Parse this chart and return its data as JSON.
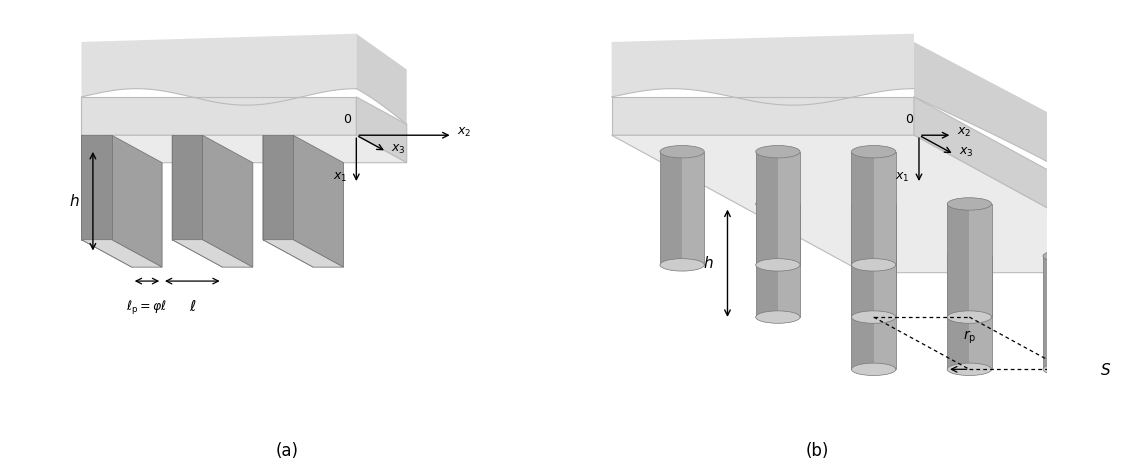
{
  "fig_width": 11.4,
  "fig_height": 4.72,
  "dpi": 100,
  "bg_color": "#ffffff",
  "sub_front": "#e0e0e0",
  "sub_right": "#d0d0d0",
  "sub_top": "#ebebeb",
  "sub_edge": "#bbbbbb",
  "plate_front": "#a8a8a8",
  "plate_right": "#c8c8c8",
  "plate_top": "#d8d8d8",
  "plate_edge": "#777777",
  "cyl_body": "#b0b0b0",
  "cyl_dark": "#888888",
  "cyl_top": "#cccccc",
  "cyl_edge": "#777777",
  "label_a": "(a)",
  "label_b": "(b)"
}
